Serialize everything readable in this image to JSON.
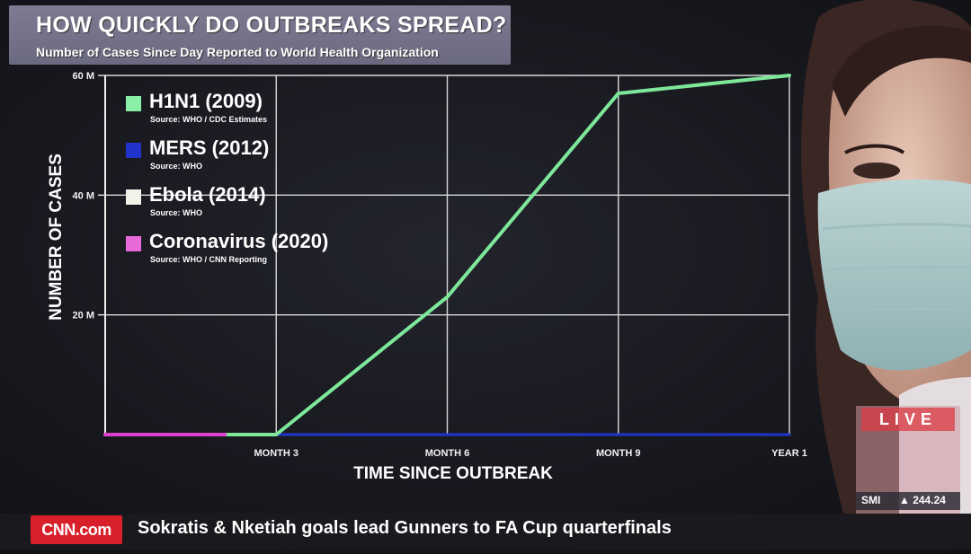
{
  "chart_data": {
    "type": "line",
    "title": "HOW QUICKLY DO OUTBREAKS SPREAD?",
    "subtitle": "Number of Cases Since Day Reported to World Health Organization",
    "xlabel": "TIME SINCE OUTBREAK",
    "ylabel": "NUMBER OF CASES",
    "x_domain": [
      0,
      12
    ],
    "ylim": [
      0,
      60
    ],
    "x_ticks": [
      {
        "value": 3,
        "label": "MONTH 3"
      },
      {
        "value": 6,
        "label": "MONTH 6"
      },
      {
        "value": 9,
        "label": "MONTH 9"
      },
      {
        "value": 12,
        "label": "YEAR 1"
      }
    ],
    "y_ticks": [
      {
        "value": 20,
        "label": "20 M"
      },
      {
        "value": 40,
        "label": "40 M"
      },
      {
        "value": 60,
        "label": "60 M"
      }
    ],
    "grid": true,
    "legend_position": "top-left",
    "series": [
      {
        "name": "H1N1 (2009)",
        "source": "Source: WHO / CDC Estimates",
        "color": "#7ee89a",
        "x": [
          0,
          3,
          6,
          9,
          12
        ],
        "y": [
          0,
          0,
          23,
          57,
          60
        ]
      },
      {
        "name": "MERS (2012)",
        "source": "Source: WHO",
        "color": "#2233cc",
        "x": [
          0,
          12
        ],
        "y": [
          0,
          0
        ]
      },
      {
        "name": "Ebola (2014)",
        "source": "Source: WHO",
        "color": "#f2f2e8",
        "x": [
          0,
          12
        ],
        "y": [
          0,
          0
        ]
      },
      {
        "name": "Coronavirus (2020)",
        "source": "Source: WHO / CNN Reporting",
        "color": "#e040d0",
        "x": [
          0,
          2.1
        ],
        "y": [
          0,
          0
        ]
      }
    ]
  },
  "broadcast": {
    "logo": "CNN.com",
    "headline": "Sokratis &  Nketiah goals lead Gunners to FA Cup quarterfinals",
    "live_label": "LIVE",
    "market_symbol": "SMI",
    "market_value": "▲ 244.24"
  }
}
